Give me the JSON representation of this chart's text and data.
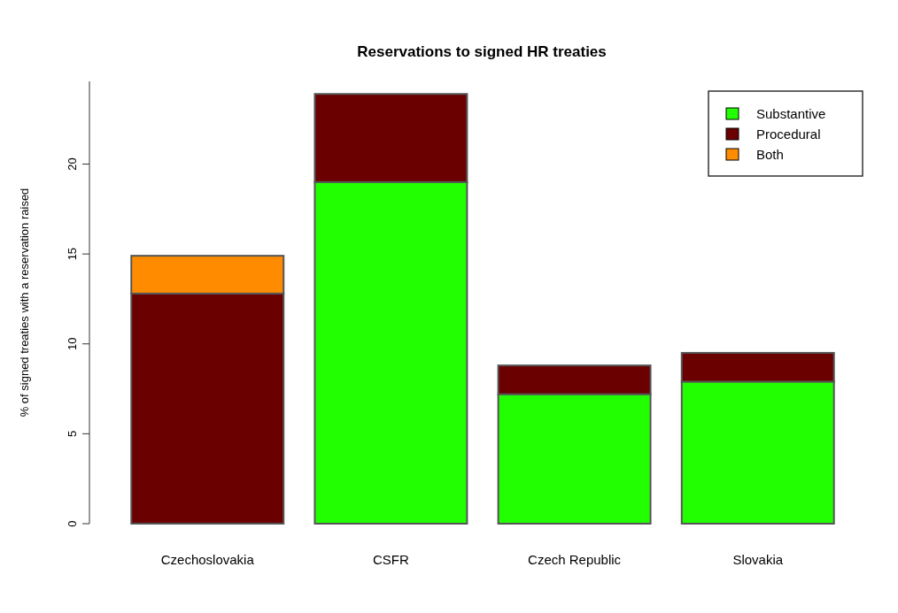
{
  "chart_data": {
    "type": "bar",
    "title": "Reservations to signed HR treaties",
    "ylabel": "% of signed treaties with a reservation raised",
    "categories": [
      "Czechoslovakia",
      "CSFR",
      "Czech Republic",
      "Slovakia"
    ],
    "stacked": true,
    "series": [
      {
        "name": "Substantive",
        "color": "#22ff00",
        "values": [
          0,
          19.0,
          7.2,
          7.9
        ]
      },
      {
        "name": "Procedural",
        "color": "#6b0000",
        "values": [
          12.8,
          4.9,
          1.6,
          1.6
        ]
      },
      {
        "name": "Both",
        "color": "#ff8c00",
        "values": [
          2.1,
          0,
          0,
          0
        ]
      }
    ],
    "ylim": [
      0,
      24.6
    ],
    "yticks": [
      0,
      5,
      10,
      15,
      20
    ],
    "legend": "top right"
  }
}
